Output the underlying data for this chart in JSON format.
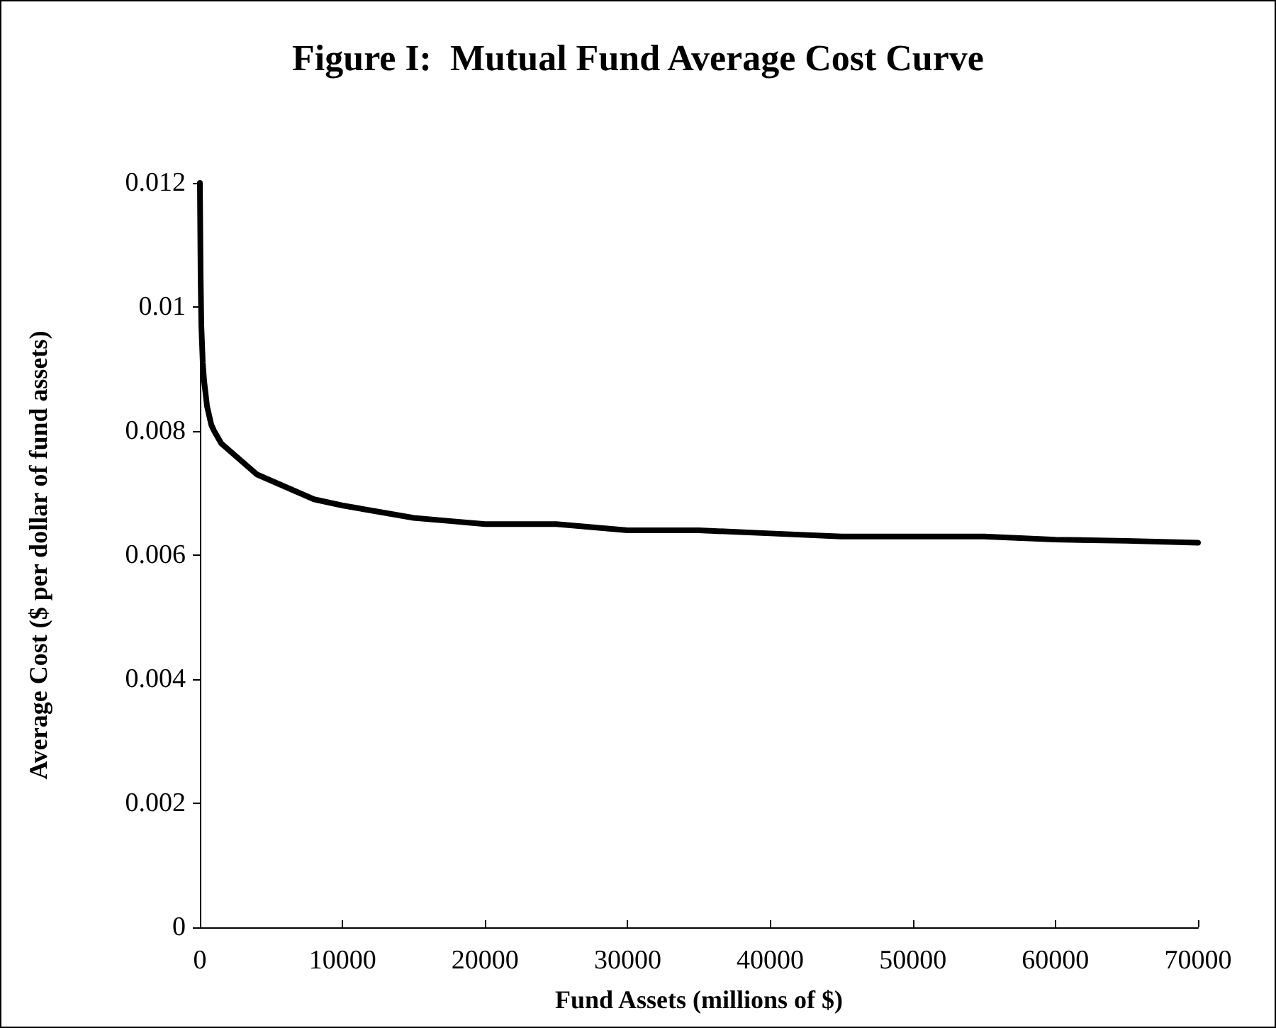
{
  "chart_data": {
    "type": "line",
    "title": "Figure I:  Mutual Fund Average Cost Curve",
    "xlabel": "Fund Assets (millions of $)",
    "ylabel": "Average Cost ($ per dollar of fund assets)",
    "x": [
      0,
      50,
      100,
      200,
      300,
      500,
      800,
      1000,
      1500,
      2000,
      3000,
      4000,
      5000,
      6000,
      8000,
      10000,
      12500,
      15000,
      17500,
      20000,
      25000,
      30000,
      35000,
      40000,
      45000,
      50000,
      55000,
      60000,
      65000,
      70000
    ],
    "series": [
      {
        "color": "#000000",
        "values": [
          0.012,
          0.0105,
          0.0097,
          0.0091,
          0.0088,
          0.0084,
          0.0081,
          0.008,
          0.0078,
          0.0077,
          0.0075,
          0.0073,
          0.0072,
          0.0071,
          0.0069,
          0.0068,
          0.0067,
          0.0066,
          0.00655,
          0.0065,
          0.0065,
          0.0064,
          0.0064,
          0.00635,
          0.0063,
          0.0063,
          0.0063,
          0.00625,
          0.00623,
          0.0062
        ]
      }
    ],
    "xlim": [
      0,
      70000
    ],
    "xticks": [
      0,
      10000,
      20000,
      30000,
      40000,
      50000,
      60000,
      70000
    ],
    "ylim": [
      0,
      0.012
    ],
    "yticks": [
      0,
      0.002,
      0.004,
      0.006,
      0.008,
      0.01,
      0.012
    ],
    "grid": false,
    "marker": "none",
    "line_style": "solid"
  }
}
